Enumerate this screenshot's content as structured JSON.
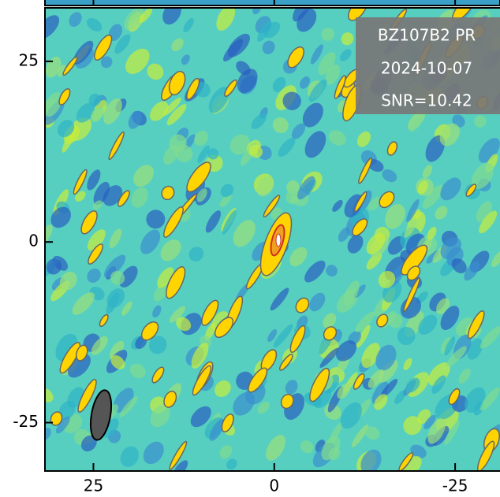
{
  "chart_data": {
    "type": "image",
    "annotations": [
      "BZ107B2 PR",
      "2024-10-07",
      "SNR=10.42"
    ],
    "xlim": [
      31.7,
      -31.2
    ],
    "ylim": [
      -31.7,
      32.4
    ],
    "xticks": [
      25,
      0,
      -25
    ],
    "yticks": [
      25,
      0,
      -25
    ]
  }
}
